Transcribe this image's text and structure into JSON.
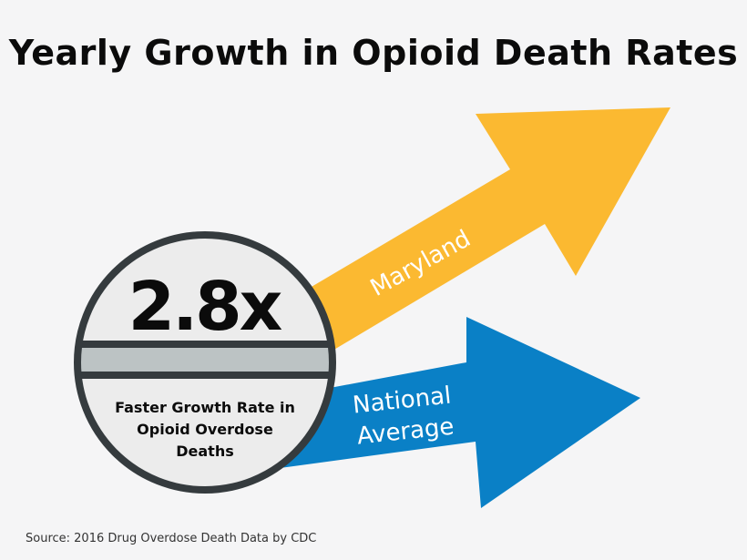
{
  "title": "Yearly Growth in Opioid Death Rates",
  "badge": {
    "value": "2.8x",
    "caption_lines": [
      "Faster Growth Rate in",
      "Opioid Overdose",
      "Deaths"
    ]
  },
  "arrows": [
    {
      "label_lines": [
        "Maryland"
      ],
      "color": "#fbb931"
    },
    {
      "label_lines": [
        "National",
        "Average"
      ],
      "color": "#0a80c6"
    }
  ],
  "source": "Source: 2016 Drug Overdose Death Data by CDC",
  "colors": {
    "background": "#f5f5f6",
    "ring": "#353b3e",
    "badge_fill": "#ececec",
    "band": "#bcc3c4"
  }
}
